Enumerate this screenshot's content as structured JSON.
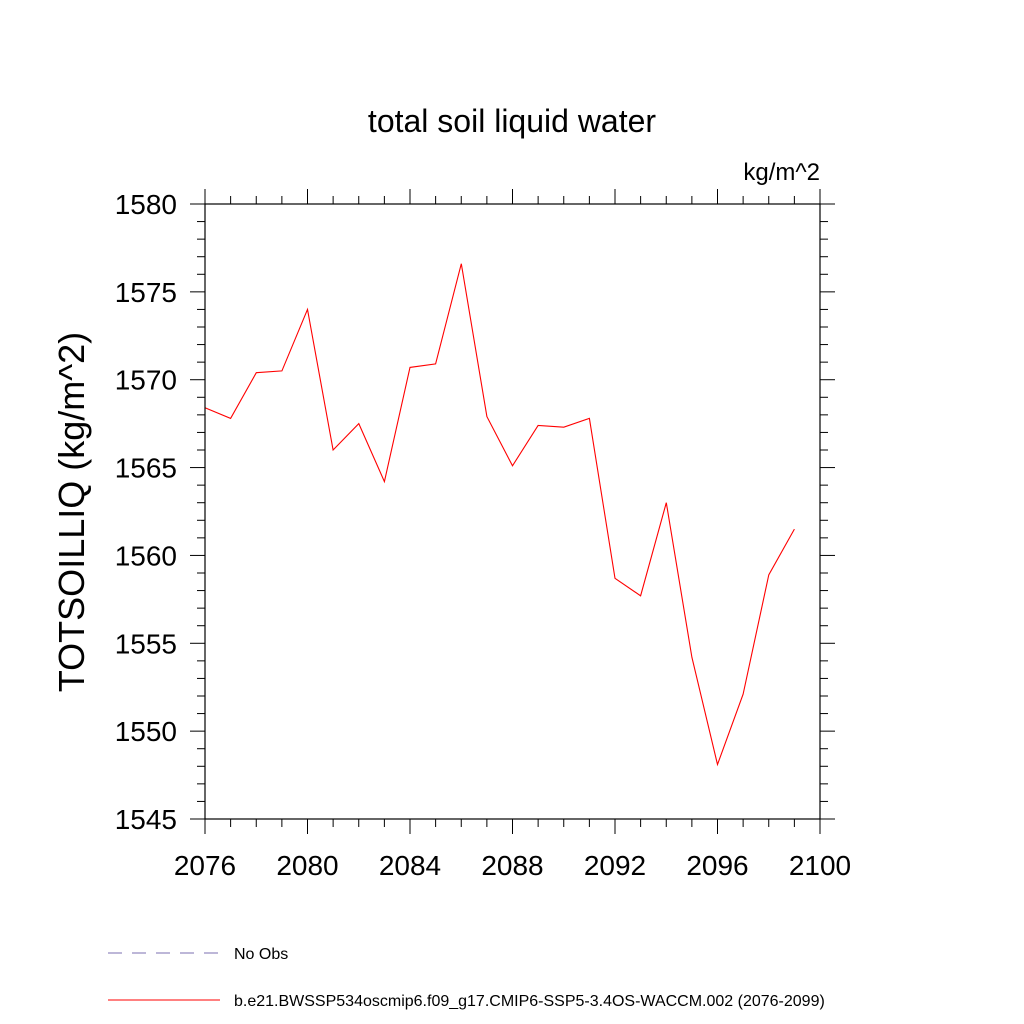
{
  "chart_data": {
    "type": "line",
    "title": "total soil liquid water",
    "units": "kg/m^2",
    "ylabel": "TOTSOILLIQ  (kg/m^2)",
    "xlabel": "",
    "xlim": [
      2076,
      2100
    ],
    "ylim": [
      1545,
      1580
    ],
    "x_ticks": [
      2076,
      2080,
      2084,
      2088,
      2092,
      2096,
      2100
    ],
    "y_ticks": [
      1545,
      1550,
      1555,
      1560,
      1565,
      1570,
      1575,
      1580
    ],
    "y_minor_step": 1,
    "x_minor_step": 1,
    "grid": false,
    "legend_placement": "bottom-left",
    "series": [
      {
        "name": "b.e21.BWSSP534oscmip6.f09_g17.CMIP6-SSP5-3.4OS-WACCM.002 (2076-2099)",
        "color": "#ff0000",
        "dash": "solid",
        "x": [
          2076,
          2077,
          2078,
          2079,
          2080,
          2081,
          2082,
          2083,
          2084,
          2085,
          2086,
          2087,
          2088,
          2089,
          2090,
          2091,
          2092,
          2093,
          2094,
          2095,
          2096,
          2097,
          2098,
          2099
        ],
        "y": [
          1568.4,
          1567.8,
          1570.4,
          1570.5,
          1574.0,
          1566.0,
          1567.5,
          1564.2,
          1570.7,
          1570.9,
          1576.6,
          1567.9,
          1565.1,
          1567.4,
          1567.3,
          1567.8,
          1558.7,
          1557.7,
          1563.0,
          1554.2,
          1548.1,
          1552.1,
          1558.9,
          1561.5
        ]
      }
    ],
    "legend": [
      {
        "label": "No Obs",
        "color": "#7b6fb0",
        "dash": "dashed"
      },
      {
        "label": "b.e21.BWSSP534oscmip6.f09_g17.CMIP6-SSP5-3.4OS-WACCM.002 (2076-2099)",
        "color": "#ff0000",
        "dash": "solid"
      }
    ]
  }
}
